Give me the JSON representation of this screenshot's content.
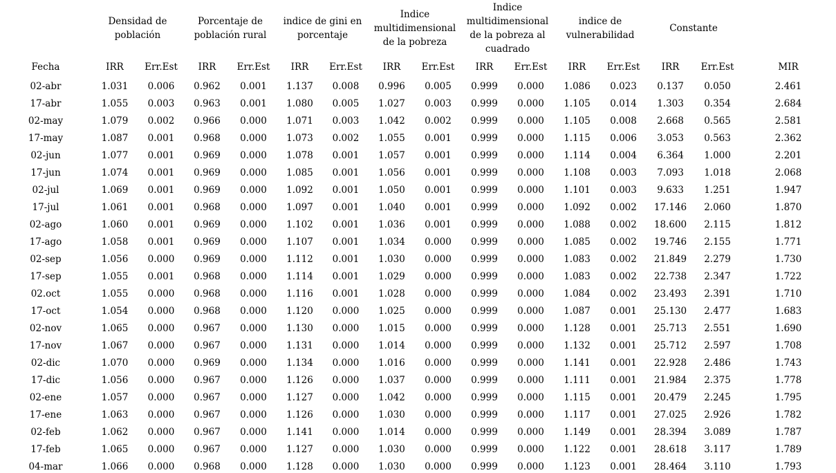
{
  "chart_data": {
    "type": "table",
    "groups": [
      "Densidad de población",
      "Porcentaje de población rural",
      "indice de gini en porcentaje",
      "Indice multidimensional de la pobreza",
      "Indice multidimensional de la pobreza al cuadrado",
      "indice de vulnerabilidad",
      "Constante"
    ],
    "sub_headers": [
      "Fecha",
      "IRR",
      "Err.Est",
      "IRR",
      "Err.Est",
      "IRR",
      "Err.Est",
      "IRR",
      "Err.Est",
      "IRR",
      "Err.Est",
      "IRR",
      "Err.Est",
      "IRR",
      "Err.Est",
      "MIR"
    ],
    "rows": [
      [
        "02-abr",
        "1.031",
        "0.006",
        "0.962",
        "0.001",
        "1.137",
        "0.008",
        "0.996",
        "0.005",
        "0.999",
        "0.000",
        "1.086",
        "0.023",
        "0.137",
        "0.050",
        "2.461"
      ],
      [
        "17-abr",
        "1.055",
        "0.003",
        "0.963",
        "0.001",
        "1.080",
        "0.005",
        "1.027",
        "0.003",
        "0.999",
        "0.000",
        "1.105",
        "0.014",
        "1.303",
        "0.354",
        "2.684"
      ],
      [
        "02-may",
        "1.079",
        "0.002",
        "0.966",
        "0.000",
        "1.071",
        "0.003",
        "1.042",
        "0.002",
        "0.999",
        "0.000",
        "1.105",
        "0.008",
        "2.668",
        "0.565",
        "2.581"
      ],
      [
        "17-may",
        "1.087",
        "0.001",
        "0.968",
        "0.000",
        "1.073",
        "0.002",
        "1.055",
        "0.001",
        "0.999",
        "0.000",
        "1.115",
        "0.006",
        "3.053",
        "0.563",
        "2.362"
      ],
      [
        "02-jun",
        "1.077",
        "0.001",
        "0.969",
        "0.000",
        "1.078",
        "0.001",
        "1.057",
        "0.001",
        "0.999",
        "0.000",
        "1.114",
        "0.004",
        "6.364",
        "1.000",
        "2.201"
      ],
      [
        "17-jun",
        "1.074",
        "0.001",
        "0.969",
        "0.000",
        "1.085",
        "0.001",
        "1.056",
        "0.001",
        "0.999",
        "0.000",
        "1.108",
        "0.003",
        "7.093",
        "1.018",
        "2.068"
      ],
      [
        "02-jul",
        "1.069",
        "0.001",
        "0.969",
        "0.000",
        "1.092",
        "0.001",
        "1.050",
        "0.001",
        "0.999",
        "0.000",
        "1.101",
        "0.003",
        "9.633",
        "1.251",
        "1.947"
      ],
      [
        "17-jul",
        "1.061",
        "0.001",
        "0.968",
        "0.000",
        "1.097",
        "0.001",
        "1.040",
        "0.001",
        "0.999",
        "0.000",
        "1.092",
        "0.002",
        "17.146",
        "2.060",
        "1.870"
      ],
      [
        "02-ago",
        "1.060",
        "0.001",
        "0.969",
        "0.000",
        "1.102",
        "0.001",
        "1.036",
        "0.001",
        "0.999",
        "0.000",
        "1.088",
        "0.002",
        "18.600",
        "2.115",
        "1.812"
      ],
      [
        "17-ago",
        "1.058",
        "0.001",
        "0.969",
        "0.000",
        "1.107",
        "0.001",
        "1.034",
        "0.000",
        "0.999",
        "0.000",
        "1.085",
        "0.002",
        "19.746",
        "2.155",
        "1.771"
      ],
      [
        "02-sep",
        "1.056",
        "0.000",
        "0.969",
        "0.000",
        "1.112",
        "0.001",
        "1.030",
        "0.000",
        "0.999",
        "0.000",
        "1.083",
        "0.002",
        "21.849",
        "2.279",
        "1.730"
      ],
      [
        "17-sep",
        "1.055",
        "0.001",
        "0.968",
        "0.000",
        "1.114",
        "0.001",
        "1.029",
        "0.000",
        "0.999",
        "0.000",
        "1.083",
        "0.002",
        "22.738",
        "2.347",
        "1.722"
      ],
      [
        "02.oct",
        "1.055",
        "0.000",
        "0.968",
        "0.000",
        "1.116",
        "0.001",
        "1.028",
        "0.000",
        "0.999",
        "0.000",
        "1.084",
        "0.002",
        "23.493",
        "2.391",
        "1.710"
      ],
      [
        "17-oct",
        "1.054",
        "0.000",
        "0.968",
        "0.000",
        "1.120",
        "0.000",
        "1.025",
        "0.000",
        "0.999",
        "0.000",
        "1.087",
        "0.001",
        "25.130",
        "2.477",
        "1.683"
      ],
      [
        "02-nov",
        "1.065",
        "0.000",
        "0.967",
        "0.000",
        "1.130",
        "0.000",
        "1.015",
        "0.000",
        "0.999",
        "0.000",
        "1.128",
        "0.001",
        "25.713",
        "2.551",
        "1.690"
      ],
      [
        "17-nov",
        "1.067",
        "0.000",
        "0.967",
        "0.000",
        "1.131",
        "0.000",
        "1.014",
        "0.000",
        "0.999",
        "0.000",
        "1.132",
        "0.001",
        "25.712",
        "2.597",
        "1.708"
      ],
      [
        "02-dic",
        "1.070",
        "0.000",
        "0.969",
        "0.000",
        "1.134",
        "0.000",
        "1.016",
        "0.000",
        "0.999",
        "0.000",
        "1.141",
        "0.001",
        "22.928",
        "2.486",
        "1.743"
      ],
      [
        "17-dic",
        "1.056",
        "0.000",
        "0.967",
        "0.000",
        "1.126",
        "0.000",
        "1.037",
        "0.000",
        "0.999",
        "0.000",
        "1.111",
        "0.001",
        "21.984",
        "2.375",
        "1.778"
      ],
      [
        "02-ene",
        "1.057",
        "0.000",
        "0.967",
        "0.000",
        "1.127",
        "0.000",
        "1.042",
        "0.000",
        "0.999",
        "0.000",
        "1.115",
        "0.001",
        "20.479",
        "2.245",
        "1.795"
      ],
      [
        "17-ene",
        "1.063",
        "0.000",
        "0.967",
        "0.000",
        "1.126",
        "0.000",
        "1.030",
        "0.000",
        "0.999",
        "0.000",
        "1.117",
        "0.001",
        "27.025",
        "2.926",
        "1.782"
      ],
      [
        "02-feb",
        "1.062",
        "0.000",
        "0.967",
        "0.000",
        "1.141",
        "0.000",
        "1.014",
        "0.000",
        "0.999",
        "0.000",
        "1.149",
        "0.001",
        "28.394",
        "3.089",
        "1.787"
      ],
      [
        "17-feb",
        "1.065",
        "0.000",
        "0.967",
        "0.000",
        "1.127",
        "0.000",
        "1.030",
        "0.000",
        "0.999",
        "0.000",
        "1.122",
        "0.001",
        "28.618",
        "3.117",
        "1.789"
      ],
      [
        "04-mar",
        "1.066",
        "0.000",
        "0.968",
        "0.000",
        "1.128",
        "0.000",
        "1.030",
        "0.000",
        "0.999",
        "0.000",
        "1.123",
        "0.001",
        "28.464",
        "3.110",
        "1.793"
      ]
    ]
  }
}
